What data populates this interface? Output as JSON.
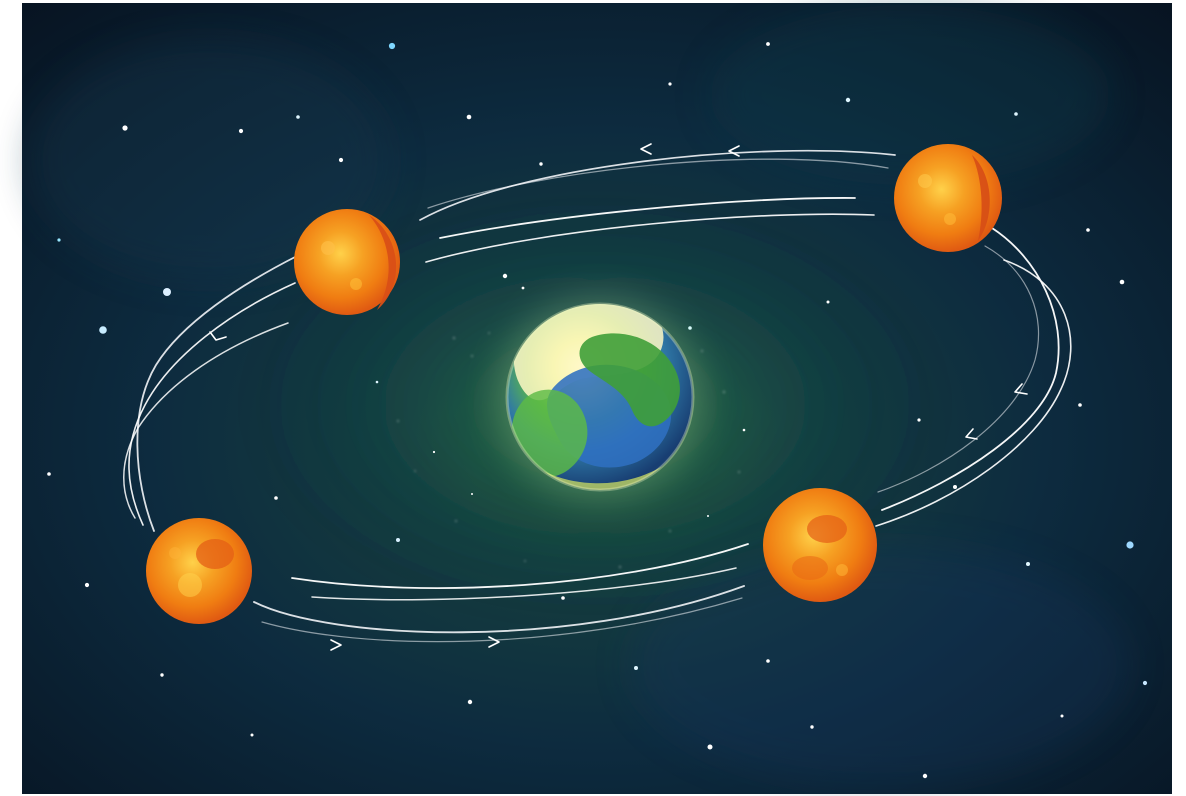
{
  "scene": {
    "background_color": "#ffffff",
    "space_colors": {
      "deep": "#07131f",
      "navy": "#0f2a44",
      "teal": "#1d5f66",
      "green_glow": "#2c7a3b"
    },
    "earth": {
      "icon": "earth-icon",
      "colors": {
        "ocean": "#2f64b8",
        "land": "#4aa43a",
        "highlight": "#f3f19a"
      }
    },
    "moons": [
      {
        "icon": "moon-icon",
        "phase": "upper-left",
        "color": "#f28a14"
      },
      {
        "icon": "moon-icon",
        "phase": "upper-right",
        "color": "#f28a14"
      },
      {
        "icon": "moon-icon",
        "phase": "lower-left",
        "color": "#f28a14"
      },
      {
        "icon": "moon-icon",
        "phase": "lower-right",
        "color": "#f28a14"
      }
    ],
    "orbit": {
      "stroke_color": "#ffffff",
      "arrow_icon": "arrow-icon",
      "direction": "counterclockwise"
    }
  }
}
